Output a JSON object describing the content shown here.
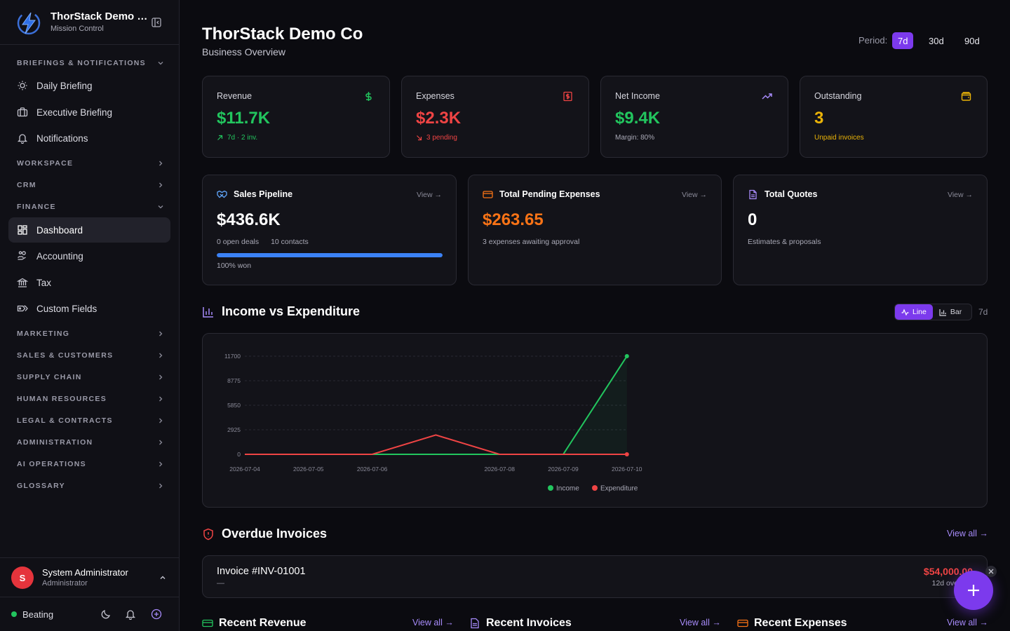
{
  "brand": {
    "name": "ThorStack Demo C...",
    "subtitle": "Mission Control"
  },
  "sidebar": {
    "sections": [
      {
        "label": "BRIEFINGS & NOTIFICATIONS",
        "expanded": true
      },
      {
        "label": "WORKSPACE",
        "expanded": false
      },
      {
        "label": "CRM",
        "expanded": false
      },
      {
        "label": "FINANCE",
        "expanded": true
      },
      {
        "label": "MARKETING",
        "expanded": false
      },
      {
        "label": "SALES & CUSTOMERS",
        "expanded": false
      },
      {
        "label": "SUPPLY CHAIN",
        "expanded": false
      },
      {
        "label": "HUMAN RESOURCES",
        "expanded": false
      },
      {
        "label": "LEGAL & CONTRACTS",
        "expanded": false
      },
      {
        "label": "ADMINISTRATION",
        "expanded": false
      },
      {
        "label": "AI OPERATIONS",
        "expanded": false
      },
      {
        "label": "GLOSSARY",
        "expanded": false
      }
    ],
    "items": [
      {
        "label": "Daily Briefing",
        "icon": "sun-icon"
      },
      {
        "label": "Executive Briefing",
        "icon": "briefcase-icon"
      },
      {
        "label": "Notifications",
        "icon": "bell-icon"
      },
      {
        "label": "Dashboard",
        "icon": "dashboard-icon",
        "active": true
      },
      {
        "label": "Accounting",
        "icon": "hand-coins-icon"
      },
      {
        "label": "Tax",
        "icon": "landmark-icon"
      },
      {
        "label": "Custom Fields",
        "icon": "tags-icon"
      }
    ]
  },
  "user": {
    "initial": "S",
    "name": "System Administrator",
    "role": "Administrator"
  },
  "status": {
    "label": "Beating"
  },
  "header": {
    "title": "ThorStack Demo Co",
    "subtitle": "Business Overview"
  },
  "period": {
    "label": "Period:",
    "options": [
      "7d",
      "30d",
      "90d"
    ],
    "selected": "7d"
  },
  "kpis": [
    {
      "label": "Revenue",
      "value": "$11.7K",
      "sub": "7d · 2 inv.",
      "color": "#22c55e",
      "icon": "dollar-icon"
    },
    {
      "label": "Expenses",
      "value": "$2.3K",
      "sub": "3 pending",
      "color": "#ef4444",
      "icon": "receipt-icon"
    },
    {
      "label": "Net Income",
      "value": "$9.4K",
      "sub": "Margin: 80%",
      "color": "#22c55e",
      "icon": "trending-up-icon"
    },
    {
      "label": "Outstanding",
      "value": "3",
      "sub": "Unpaid invoices",
      "color": "#eab308",
      "icon": "wallet-icon"
    }
  ],
  "summaries": {
    "pipeline": {
      "title": "Sales Pipeline",
      "view": "View →",
      "value": "$436.6K",
      "deals": "0 open deals",
      "contacts": "10 contacts",
      "won_label": "100% won",
      "won_fraction": 1.0
    },
    "pending": {
      "title": "Total Pending Expenses",
      "view": "View →",
      "value": "$263.65",
      "sub": "3 expenses awaiting approval"
    },
    "quotes": {
      "title": "Total Quotes",
      "view": "View →",
      "value": "0",
      "sub": "Estimates & proposals"
    }
  },
  "chart_section": {
    "title": "Income vs Expenditure",
    "line_label": "Line",
    "bar_label": "Bar",
    "range": "7d"
  },
  "chart_data": {
    "type": "line",
    "x": [
      "2026-07-04",
      "2026-07-05",
      "2026-07-06",
      "2026-07-07",
      "2026-07-08",
      "2026-07-09",
      "2026-07-10"
    ],
    "x_tick_labels": [
      "2026-07-04",
      "2026-07-05",
      "2026-07-06",
      "",
      "2026-07-08",
      "2026-07-09",
      "2026-07-10"
    ],
    "yticks": [
      "11700",
      "8775",
      "5850",
      "2925",
      "0"
    ],
    "ylim": [
      0,
      11700
    ],
    "series": [
      {
        "name": "Income",
        "color": "#22c55e",
        "values": [
          0,
          0,
          0,
          0,
          0,
          0,
          11700
        ]
      },
      {
        "name": "Expenditure",
        "color": "#ef4444",
        "values": [
          0,
          0,
          0,
          2300,
          0,
          0,
          0
        ]
      }
    ],
    "grid": true,
    "legend": "bottom"
  },
  "overdue": {
    "title": "Overdue Invoices",
    "view_all": "View all →",
    "invoice": {
      "title": "Invoice #INV-01001",
      "dash": "—",
      "amount": "$54,000.00",
      "due": "12d overdue"
    }
  },
  "recent": [
    {
      "title": "Recent Revenue",
      "view_all": "View all →"
    },
    {
      "title": "Recent Invoices",
      "view_all": "View all →"
    },
    {
      "title": "Recent Expenses",
      "view_all": "View all →"
    }
  ]
}
